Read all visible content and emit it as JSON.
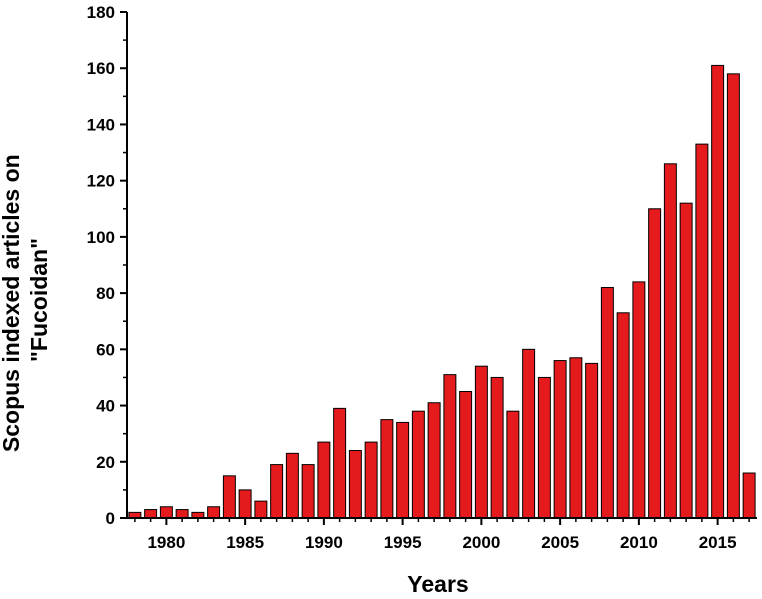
{
  "chart_data": {
    "type": "bar",
    "xlabel": "Years",
    "ylabel_lines": [
      "Scopus indexed articles on",
      "\"Fucoidan\""
    ],
    "x_tick_labels": [
      "1980",
      "1985",
      "1990",
      "1995",
      "2000",
      "2005",
      "2010",
      "2015"
    ],
    "x_tick_values": [
      1980,
      1985,
      1990,
      1995,
      2000,
      2005,
      2010,
      2015
    ],
    "y_tick_labels": [
      "0",
      "20",
      "40",
      "60",
      "80",
      "100",
      "120",
      "140",
      "160",
      "180"
    ],
    "y_tick_values": [
      0,
      20,
      40,
      60,
      80,
      100,
      120,
      140,
      160,
      180
    ],
    "xlim": [
      1977.5,
      2017.5
    ],
    "ylim": [
      0,
      180
    ],
    "grid": false,
    "bar_color": "#e41a1c",
    "bar_edge_color": "#000000",
    "categories": [
      1978,
      1979,
      1980,
      1981,
      1982,
      1983,
      1984,
      1985,
      1986,
      1987,
      1988,
      1989,
      1990,
      1991,
      1992,
      1993,
      1994,
      1995,
      1996,
      1997,
      1998,
      1999,
      2000,
      2001,
      2002,
      2003,
      2004,
      2005,
      2006,
      2007,
      2008,
      2009,
      2010,
      2011,
      2012,
      2013,
      2014,
      2015,
      2016,
      2017
    ],
    "values": [
      2,
      3,
      4,
      3,
      2,
      4,
      15,
      10,
      6,
      19,
      23,
      19,
      27,
      39,
      24,
      27,
      35,
      34,
      38,
      41,
      51,
      45,
      54,
      50,
      38,
      60,
      50,
      56,
      57,
      55,
      82,
      73,
      84,
      110,
      126,
      112,
      133,
      161,
      158,
      16
    ]
  }
}
